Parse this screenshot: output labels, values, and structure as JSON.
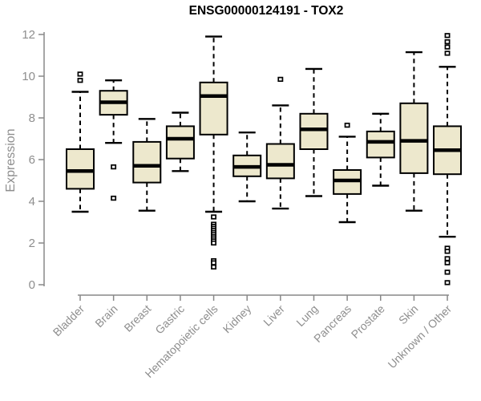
{
  "chart_data": {
    "type": "boxplot",
    "title": "ENSG00000124191 - TOX2",
    "ylabel": "Expression",
    "xlabel": "",
    "ylim": [
      0,
      12
    ],
    "yticks": [
      0,
      2,
      4,
      6,
      8,
      10,
      12
    ],
    "grid": "off",
    "legend": "none",
    "box_fill": "#EDE8CD",
    "box_stroke": "#000000",
    "axis_color": "#888888",
    "label_color": "#8e8e8e",
    "title_color": "#000000",
    "categories": [
      "Bladder",
      "Brain",
      "Breast",
      "Gastric",
      "Hematopoietic cells",
      "Kidney",
      "Liver",
      "Lung",
      "Pancreas",
      "Prostate",
      "Skin",
      "Unknown / Other"
    ],
    "series": [
      {
        "category": "Bladder",
        "whisker_low": 3.5,
        "q1": 4.6,
        "median": 5.45,
        "q3": 6.5,
        "whisker_high": 9.25,
        "outliers": [
          9.8,
          10.1
        ]
      },
      {
        "category": "Brain",
        "whisker_low": 6.8,
        "q1": 8.15,
        "median": 8.75,
        "q3": 9.3,
        "whisker_high": 9.8,
        "outliers": [
          5.65,
          4.15
        ]
      },
      {
        "category": "Breast",
        "whisker_low": 3.55,
        "q1": 4.9,
        "median": 5.7,
        "q3": 6.85,
        "whisker_high": 7.95,
        "outliers": []
      },
      {
        "category": "Gastric",
        "whisker_low": 5.45,
        "q1": 6.05,
        "median": 7.0,
        "q3": 7.6,
        "whisker_high": 8.25,
        "outliers": []
      },
      {
        "category": "Hematopoietic cells",
        "whisker_low": 3.5,
        "q1": 7.2,
        "median": 9.05,
        "q3": 9.7,
        "whisker_high": 11.9,
        "outliers": [
          3.25,
          2.9,
          2.8,
          2.7,
          2.6,
          2.5,
          2.4,
          2.3,
          2.2,
          2.1,
          2.0,
          1.15,
          1.05,
          0.85
        ]
      },
      {
        "category": "Kidney",
        "whisker_low": 4.0,
        "q1": 5.2,
        "median": 5.65,
        "q3": 6.2,
        "whisker_high": 7.3,
        "outliers": []
      },
      {
        "category": "Liver",
        "whisker_low": 3.65,
        "q1": 5.1,
        "median": 5.75,
        "q3": 6.75,
        "whisker_high": 8.6,
        "outliers": [
          9.85
        ]
      },
      {
        "category": "Lung",
        "whisker_low": 4.25,
        "q1": 6.5,
        "median": 7.45,
        "q3": 8.2,
        "whisker_high": 10.35,
        "outliers": []
      },
      {
        "category": "Pancreas",
        "whisker_low": 3.0,
        "q1": 4.35,
        "median": 5.0,
        "q3": 5.5,
        "whisker_high": 7.1,
        "outliers": [
          7.65
        ]
      },
      {
        "category": "Prostate",
        "whisker_low": 4.75,
        "q1": 6.1,
        "median": 6.85,
        "q3": 7.35,
        "whisker_high": 8.2,
        "outliers": []
      },
      {
        "category": "Skin",
        "whisker_low": 3.55,
        "q1": 5.35,
        "median": 6.9,
        "q3": 8.7,
        "whisker_high": 11.15,
        "outliers": []
      },
      {
        "category": "Unknown / Other",
        "whisker_low": 2.3,
        "q1": 5.3,
        "median": 6.45,
        "q3": 7.6,
        "whisker_high": 10.45,
        "outliers": [
          11.95,
          11.65,
          11.4,
          11.1,
          1.75,
          1.6,
          1.25,
          1.05,
          0.6,
          0.1
        ]
      }
    ]
  }
}
